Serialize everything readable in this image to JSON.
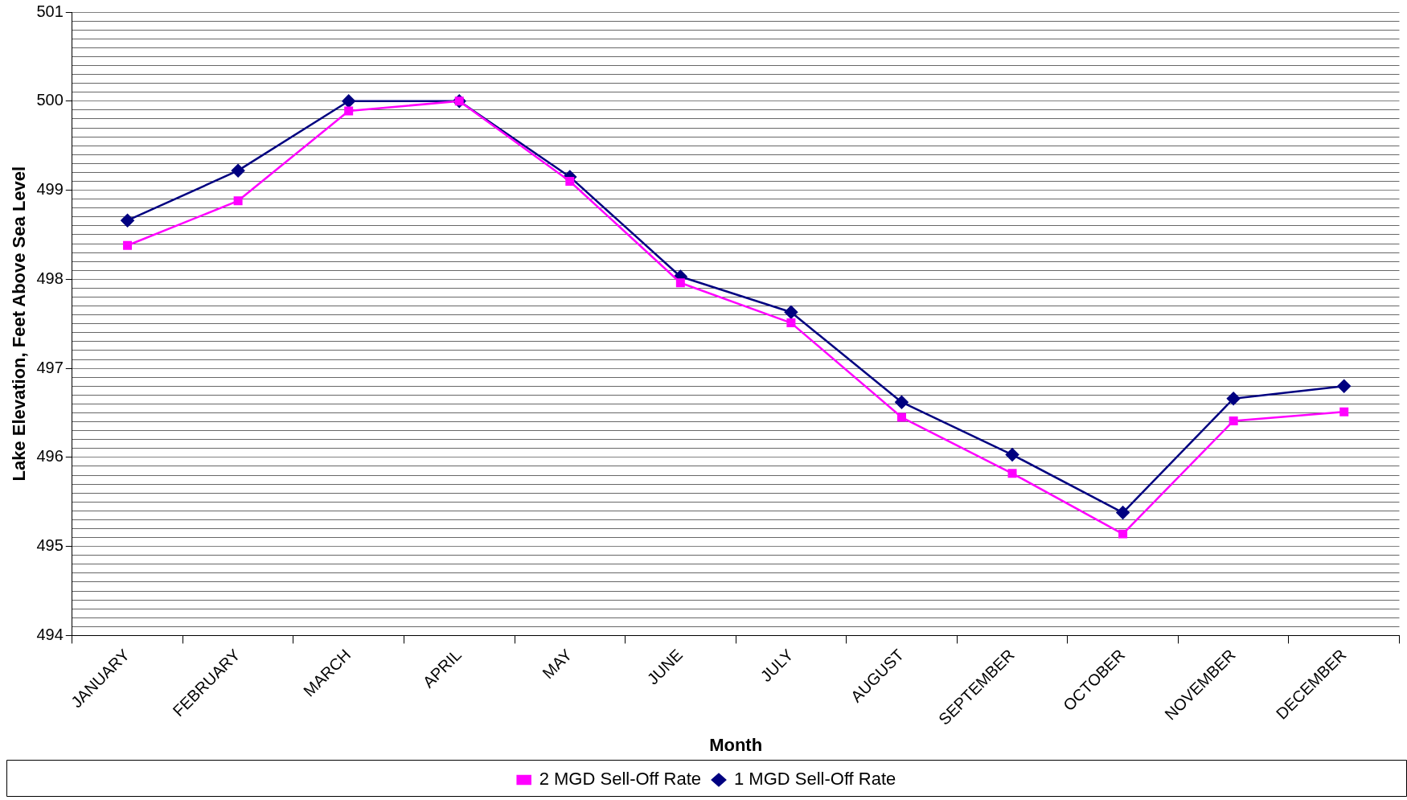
{
  "chart_data": {
    "type": "line",
    "xlabel": "Month",
    "ylabel": "Lake Elevation, Feet Above Sea Level",
    "categories": [
      "JANUARY",
      "FEBRUARY",
      "MARCH",
      "APRIL",
      "MAY",
      "JUNE",
      "JULY",
      "AUGUST",
      "SEPTEMBER",
      "OCTOBER",
      "NOVEMBER",
      "DECEMBER"
    ],
    "series": [
      {
        "name": "1 MGD Sell-Off Rate",
        "color": "#000080",
        "marker": "diamond",
        "values": [
          498.66,
          499.22,
          500.0,
          500.0,
          499.15,
          498.03,
          497.63,
          496.62,
          496.03,
          495.38,
          496.66,
          496.8
        ]
      },
      {
        "name": "2 MGD Sell-Off Rate",
        "color": "#ff00ff",
        "marker": "square",
        "values": [
          498.38,
          498.88,
          499.89,
          500.0,
          499.1,
          497.96,
          497.51,
          496.45,
          495.82,
          495.14,
          496.41,
          496.51
        ]
      }
    ],
    "ylim": [
      494,
      501
    ],
    "yticks": [
      494,
      {
        "value": 494.1,
        "label": null
      },
      {
        "value": 494.2,
        "label": null
      },
      {
        "value": 494.3,
        "label": null
      },
      {
        "value": 494.4,
        "label": null
      },
      {
        "value": 494.5,
        "label": null
      },
      {
        "value": 494.6,
        "label": null
      },
      {
        "value": 494.7,
        "label": null
      },
      {
        "value": 494.8,
        "label": null
      },
      {
        "value": 494.9,
        "label": null
      },
      495,
      {
        "value": 495.1,
        "label": null
      },
      {
        "value": 495.2,
        "label": null
      },
      {
        "value": 495.3,
        "label": null
      },
      {
        "value": 495.4,
        "label": null
      },
      {
        "value": 495.5,
        "label": null
      },
      {
        "value": 495.6,
        "label": null
      },
      {
        "value": 495.7,
        "label": null
      },
      {
        "value": 495.8,
        "label": null
      },
      {
        "value": 495.9,
        "label": null
      },
      496,
      {
        "value": 496.1,
        "label": null
      },
      {
        "value": 496.2,
        "label": null
      },
      {
        "value": 496.3,
        "label": null
      },
      {
        "value": 496.4,
        "label": null
      },
      {
        "value": 496.5,
        "label": null
      },
      {
        "value": 496.6,
        "label": null
      },
      {
        "value": 496.7,
        "label": null
      },
      {
        "value": 496.8,
        "label": null
      },
      {
        "value": 496.9,
        "label": null
      },
      497,
      {
        "value": 497.1,
        "label": null
      },
      {
        "value": 497.2,
        "label": null
      },
      {
        "value": 497.3,
        "label": null
      },
      {
        "value": 497.4,
        "label": null
      },
      {
        "value": 497.5,
        "label": null
      },
      {
        "value": 497.6,
        "label": null
      },
      {
        "value": 497.7,
        "label": null
      },
      {
        "value": 497.8,
        "label": null
      },
      {
        "value": 497.9,
        "label": null
      },
      498,
      {
        "value": 498.1,
        "label": null
      },
      {
        "value": 498.2,
        "label": null
      },
      {
        "value": 498.3,
        "label": null
      },
      {
        "value": 498.4,
        "label": null
      },
      {
        "value": 498.5,
        "label": null
      },
      {
        "value": 498.6,
        "label": null
      },
      {
        "value": 498.7,
        "label": null
      },
      {
        "value": 498.8,
        "label": null
      },
      {
        "value": 498.9,
        "label": null
      },
      499,
      {
        "value": 499.1,
        "label": null
      },
      {
        "value": 499.2,
        "label": null
      },
      {
        "value": 499.3,
        "label": null
      },
      {
        "value": 499.4,
        "label": null
      },
      {
        "value": 499.5,
        "label": null
      },
      {
        "value": 499.6,
        "label": null
      },
      {
        "value": 499.7,
        "label": null
      },
      {
        "value": 499.8,
        "label": null
      },
      {
        "value": 499.9,
        "label": null
      },
      500,
      {
        "value": 500.1,
        "label": null
      },
      {
        "value": 500.2,
        "label": null
      },
      {
        "value": 500.3,
        "label": null
      },
      {
        "value": 500.4,
        "label": null
      },
      {
        "value": 500.5,
        "label": null
      },
      {
        "value": 500.6,
        "label": null
      },
      {
        "value": 500.7,
        "label": null
      },
      {
        "value": 500.8,
        "label": null
      },
      {
        "value": 500.9,
        "label": null
      },
      501
    ],
    "grid": "y",
    "legend": "bottom",
    "line_style": "solid"
  }
}
